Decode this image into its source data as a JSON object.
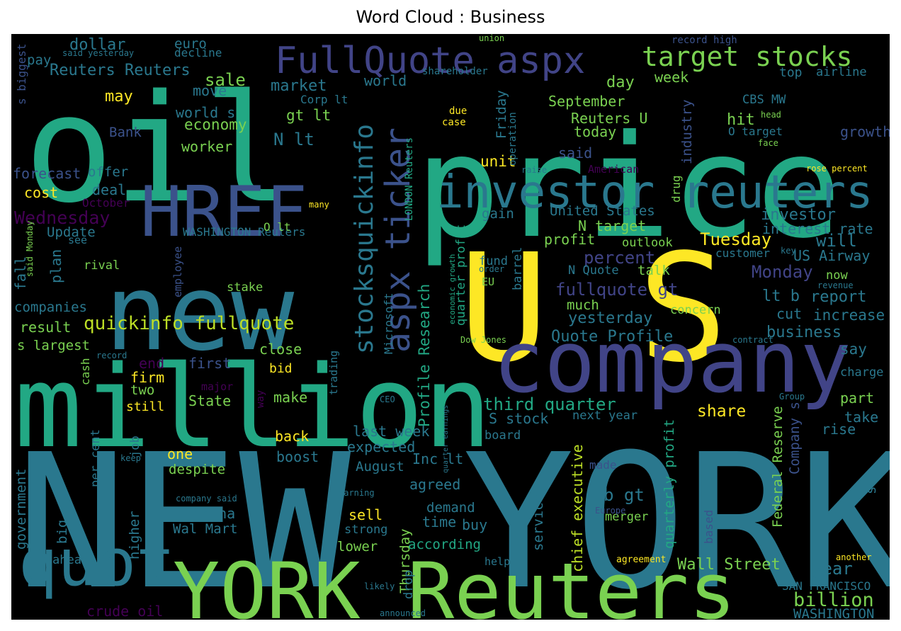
{
  "chart_data": {
    "type": "wordcloud",
    "title": "Word Cloud : Business",
    "colormap": "viridis",
    "background": "#000000",
    "words": [
      {
        "text": "NEW YORK",
        "weight": 1.0,
        "color": "#2a788e"
      },
      {
        "text": "price",
        "weight": 0.8,
        "color": "#22a884"
      },
      {
        "text": "oil",
        "weight": 0.78,
        "color": "#22a884"
      },
      {
        "text": "U S",
        "weight": 0.82,
        "color": "#fde725"
      },
      {
        "text": "million",
        "weight": 0.68,
        "color": "#22a884"
      },
      {
        "text": "new",
        "weight": 0.64,
        "color": "#2a788e"
      },
      {
        "text": "company",
        "weight": 0.56,
        "color": "#414487"
      },
      {
        "text": "YORK Reuters",
        "weight": 0.54,
        "color": "#7ad151"
      },
      {
        "text": "HREF",
        "weight": 0.42,
        "color": "#3b528b"
      },
      {
        "text": "quot",
        "weight": 0.4,
        "color": "#2a788e"
      },
      {
        "text": "investor reuters",
        "weight": 0.3,
        "color": "#2a788e"
      },
      {
        "text": "FullQuote aspx",
        "weight": 0.24,
        "color": "#414487"
      },
      {
        "text": "aspx ticker",
        "weight": 0.22,
        "color": "#3b528b"
      },
      {
        "text": "stocksquickinfo",
        "weight": 0.19,
        "color": "#2a788e"
      },
      {
        "text": "target stocks",
        "weight": 0.18,
        "color": "#7ad151"
      },
      {
        "text": "Wednesday",
        "weight": 0.1,
        "color": "#440154"
      },
      {
        "text": "quickinfo fullquote",
        "weight": 0.1,
        "color": "#bddf26"
      },
      {
        "text": "Reuters Reuters",
        "weight": 0.09,
        "color": "#2a788e"
      },
      {
        "text": "Tuesday",
        "weight": 0.1,
        "color": "#fde725"
      },
      {
        "text": "percent",
        "weight": 0.09,
        "color": "#414487"
      },
      {
        "text": "Monday",
        "weight": 0.09,
        "color": "#414487"
      },
      {
        "text": "fullquote gt",
        "weight": 0.09,
        "color": "#414487"
      },
      {
        "text": "third quarter",
        "weight": 0.09,
        "color": "#22a884"
      },
      {
        "text": "chief executive",
        "weight": 0.08,
        "color": "#bddf26"
      },
      {
        "text": "Profile Research",
        "weight": 0.08,
        "color": "#22a884"
      },
      {
        "text": "quarterly profit",
        "weight": 0.08,
        "color": "#22a884"
      },
      {
        "text": "Federal Reserve",
        "weight": 0.08,
        "color": "#7ad151"
      },
      {
        "text": "billion",
        "weight": 0.08,
        "color": "#7ad151"
      },
      {
        "text": "Wall Street",
        "weight": 0.08,
        "color": "#7ad151"
      },
      {
        "text": "investor",
        "weight": 0.07,
        "color": "#2a788e"
      },
      {
        "text": "interest rate",
        "weight": 0.07,
        "color": "#2a788e"
      },
      {
        "text": "US Airway",
        "weight": 0.07,
        "color": "#2a788e"
      },
      {
        "text": "yesterday",
        "weight": 0.07,
        "color": "#2a788e"
      },
      {
        "text": "Quote Profile",
        "weight": 0.07,
        "color": "#2a788e"
      },
      {
        "text": "business",
        "weight": 0.07,
        "color": "#2a788e"
      },
      {
        "text": "report",
        "weight": 0.07,
        "color": "#2a788e"
      },
      {
        "text": "increase",
        "weight": 0.07,
        "color": "#2a788e"
      },
      {
        "text": "say",
        "weight": 0.07,
        "color": "#2a788e"
      },
      {
        "text": "share",
        "weight": 0.07,
        "color": "#fde725"
      },
      {
        "text": "will",
        "weight": 0.07,
        "color": "#2a788e"
      },
      {
        "text": "year",
        "weight": 0.07,
        "color": "#2a788e"
      },
      {
        "text": "WASHINGTON",
        "weight": 0.06,
        "color": "#2a788e"
      },
      {
        "text": "SAN FRANCISCO",
        "weight": 0.05,
        "color": "#2a788e"
      },
      {
        "text": "market",
        "weight": 0.07,
        "color": "#2a788e"
      },
      {
        "text": "dollar",
        "weight": 0.07,
        "color": "#2a788e"
      },
      {
        "text": "sale",
        "weight": 0.07,
        "color": "#7ad151"
      },
      {
        "text": "may",
        "weight": 0.06,
        "color": "#fde725"
      },
      {
        "text": "move",
        "weight": 0.06,
        "color": "#2a788e"
      },
      {
        "text": "world s",
        "weight": 0.06,
        "color": "#2a788e"
      },
      {
        "text": "economy",
        "weight": 0.06,
        "color": "#7ad151"
      },
      {
        "text": "worker",
        "weight": 0.06,
        "color": "#7ad151"
      },
      {
        "text": "N lt",
        "weight": 0.07,
        "color": "#2a788e"
      },
      {
        "text": "gt lt",
        "weight": 0.06,
        "color": "#7ad151"
      },
      {
        "text": "Corp lt",
        "weight": 0.05,
        "color": "#2a788e"
      },
      {
        "text": "world",
        "weight": 0.06,
        "color": "#2a788e"
      },
      {
        "text": "Friday",
        "weight": 0.06,
        "color": "#2a788e"
      },
      {
        "text": "September",
        "weight": 0.06,
        "color": "#7ad151"
      },
      {
        "text": "Reuters U",
        "weight": 0.06,
        "color": "#7ad151"
      },
      {
        "text": "today",
        "weight": 0.06,
        "color": "#7ad151"
      },
      {
        "text": "day",
        "weight": 0.06,
        "color": "#7ad151"
      },
      {
        "text": "week",
        "weight": 0.06,
        "color": "#7ad151"
      },
      {
        "text": "CBS MW",
        "weight": 0.05,
        "color": "#2a788e"
      },
      {
        "text": "hit",
        "weight": 0.06,
        "color": "#7ad151"
      },
      {
        "text": "O target",
        "weight": 0.05,
        "color": "#2a788e"
      },
      {
        "text": "growth",
        "weight": 0.06,
        "color": "#3b528b"
      },
      {
        "text": "industry",
        "weight": 0.06,
        "color": "#3b528b"
      },
      {
        "text": "top",
        "weight": 0.06,
        "color": "#2a788e"
      },
      {
        "text": "UK",
        "weight": 0.06,
        "color": "#2a788e"
      },
      {
        "text": "airline",
        "weight": 0.05,
        "color": "#2a788e"
      },
      {
        "text": "said",
        "weight": 0.06,
        "color": "#3b528b"
      },
      {
        "text": "unit",
        "weight": 0.06,
        "color": "#fde725"
      },
      {
        "text": "Bank",
        "weight": 0.06,
        "color": "#3b528b"
      },
      {
        "text": "forecast",
        "weight": 0.06,
        "color": "#3b528b"
      },
      {
        "text": "offer",
        "weight": 0.06,
        "color": "#2a788e"
      },
      {
        "text": "deal",
        "weight": 0.06,
        "color": "#2a788e"
      },
      {
        "text": "cost",
        "weight": 0.06,
        "color": "#fde725"
      },
      {
        "text": "October",
        "weight": 0.05,
        "color": "#440154"
      },
      {
        "text": "Update",
        "weight": 0.06,
        "color": "#2a788e"
      },
      {
        "text": "plan",
        "weight": 0.06,
        "color": "#2a788e"
      },
      {
        "text": "fall",
        "weight": 0.06,
        "color": "#2a788e"
      },
      {
        "text": "rival",
        "weight": 0.05,
        "color": "#7ad151"
      },
      {
        "text": "companies",
        "weight": 0.06,
        "color": "#2a788e"
      },
      {
        "text": "result",
        "weight": 0.06,
        "color": "#7ad151"
      },
      {
        "text": "s largest",
        "weight": 0.06,
        "color": "#7ad151"
      },
      {
        "text": "stake",
        "weight": 0.05,
        "color": "#7ad151"
      },
      {
        "text": "employee",
        "weight": 0.05,
        "color": "#3b528b"
      },
      {
        "text": "WASHINGTON Reuters",
        "weight": 0.05,
        "color": "#2a788e"
      },
      {
        "text": "O lt",
        "weight": 0.05,
        "color": "#7ad151"
      },
      {
        "text": "close",
        "weight": 0.06,
        "color": "#7ad151"
      },
      {
        "text": "first",
        "weight": 0.06,
        "color": "#3b528b"
      },
      {
        "text": "bid",
        "weight": 0.05,
        "color": "#fde725"
      },
      {
        "text": "end",
        "weight": 0.06,
        "color": "#440154"
      },
      {
        "text": "firm",
        "weight": 0.06,
        "color": "#fde725"
      },
      {
        "text": "two",
        "weight": 0.05,
        "color": "#7ad151"
      },
      {
        "text": "still",
        "weight": 0.05,
        "color": "#fde725"
      },
      {
        "text": "State",
        "weight": 0.06,
        "color": "#7ad151"
      },
      {
        "text": "make",
        "weight": 0.06,
        "color": "#7ad151"
      },
      {
        "text": "back",
        "weight": 0.06,
        "color": "#fde725"
      },
      {
        "text": "one",
        "weight": 0.06,
        "color": "#fde725"
      },
      {
        "text": "despite",
        "weight": 0.06,
        "color": "#7ad151"
      },
      {
        "text": "boost",
        "weight": 0.06,
        "color": "#2a788e"
      },
      {
        "text": "China",
        "weight": 0.06,
        "color": "#2a788e"
      },
      {
        "text": "Wal Mart",
        "weight": 0.06,
        "color": "#2a788e"
      },
      {
        "text": "higher",
        "weight": 0.06,
        "color": "#2a788e"
      },
      {
        "text": "big",
        "weight": 0.06,
        "color": "#2a788e"
      },
      {
        "text": "government",
        "weight": 0.06,
        "color": "#2a788e"
      },
      {
        "text": "per cent",
        "weight": 0.05,
        "color": "#2a788e"
      },
      {
        "text": "job",
        "weight": 0.05,
        "color": "#2a788e"
      },
      {
        "text": "ahead",
        "weight": 0.05,
        "color": "#2a788e"
      },
      {
        "text": "crude oil",
        "weight": 0.06,
        "color": "#440154"
      },
      {
        "text": "last week",
        "weight": 0.06,
        "color": "#2a788e"
      },
      {
        "text": "expected",
        "weight": 0.06,
        "color": "#2a788e"
      },
      {
        "text": "August",
        "weight": 0.06,
        "color": "#2a788e"
      },
      {
        "text": "Inc lt",
        "weight": 0.06,
        "color": "#2a788e"
      },
      {
        "text": "agreed",
        "weight": 0.06,
        "color": "#2a788e"
      },
      {
        "text": "Thursday",
        "weight": 0.06,
        "color": "#7ad151"
      },
      {
        "text": "sell",
        "weight": 0.06,
        "color": "#fde725"
      },
      {
        "text": "demand",
        "weight": 0.06,
        "color": "#2a788e"
      },
      {
        "text": "time",
        "weight": 0.06,
        "color": "#2a788e"
      },
      {
        "text": "buy",
        "weight": 0.06,
        "color": "#2a788e"
      },
      {
        "text": "according",
        "weight": 0.06,
        "color": "#22a884"
      },
      {
        "text": "strong",
        "weight": 0.05,
        "color": "#2a788e"
      },
      {
        "text": "lower",
        "weight": 0.06,
        "color": "#7ad151"
      },
      {
        "text": "drop",
        "weight": 0.05,
        "color": "#2a788e"
      },
      {
        "text": "S stock",
        "weight": 0.06,
        "color": "#2a788e"
      },
      {
        "text": "next year",
        "weight": 0.05,
        "color": "#2a788e"
      },
      {
        "text": "board",
        "weight": 0.05,
        "color": "#2a788e"
      },
      {
        "text": "b gt",
        "weight": 0.06,
        "color": "#2a788e"
      },
      {
        "text": "merger",
        "weight": 0.05,
        "color": "#7ad151"
      },
      {
        "text": "made",
        "weight": 0.05,
        "color": "#3b528b"
      },
      {
        "text": "service",
        "weight": 0.06,
        "color": "#2a788e"
      },
      {
        "text": "Company s",
        "weight": 0.06,
        "color": "#3b528b"
      },
      {
        "text": "part",
        "weight": 0.06,
        "color": "#7ad151"
      },
      {
        "text": "take",
        "weight": 0.06,
        "color": "#2a788e"
      },
      {
        "text": "rise",
        "weight": 0.06,
        "color": "#2a788e"
      },
      {
        "text": "set",
        "weight": 0.06,
        "color": "#2a788e"
      },
      {
        "text": "charge",
        "weight": 0.05,
        "color": "#2a788e"
      },
      {
        "text": "based",
        "weight": 0.05,
        "color": "#3b528b"
      },
      {
        "text": "cut",
        "weight": 0.06,
        "color": "#2a788e"
      },
      {
        "text": "lt b",
        "weight": 0.06,
        "color": "#2a788e"
      },
      {
        "text": "concern",
        "weight": 0.05,
        "color": "#7ad151"
      },
      {
        "text": "much",
        "weight": 0.06,
        "color": "#7ad151"
      },
      {
        "text": "talk",
        "weight": 0.06,
        "color": "#7ad151"
      },
      {
        "text": "N Quote",
        "weight": 0.05,
        "color": "#2a788e"
      },
      {
        "text": "outlook",
        "weight": 0.05,
        "color": "#7ad151"
      },
      {
        "text": "profit",
        "weight": 0.06,
        "color": "#7ad151"
      },
      {
        "text": "N target",
        "weight": 0.06,
        "color": "#7ad151"
      },
      {
        "text": "United States",
        "weight": 0.06,
        "color": "#2a788e"
      },
      {
        "text": "gain",
        "weight": 0.06,
        "color": "#2a788e"
      },
      {
        "text": "fund",
        "weight": 0.05,
        "color": "#2a788e"
      },
      {
        "text": "barrel",
        "weight": 0.05,
        "color": "#2a788e"
      },
      {
        "text": "customer",
        "weight": 0.05,
        "color": "#2a788e"
      },
      {
        "text": "now",
        "weight": 0.05,
        "color": "#7ad151"
      },
      {
        "text": "quarter profit",
        "weight": 0.05,
        "color": "#22a884"
      },
      {
        "text": "Microsoft",
        "weight": 0.05,
        "color": "#2a788e"
      },
      {
        "text": "trading",
        "weight": 0.05,
        "color": "#2a788e"
      },
      {
        "text": "cash",
        "weight": 0.05,
        "color": "#7ad151"
      },
      {
        "text": "major",
        "weight": 0.05,
        "color": "#440154"
      },
      {
        "text": "drug",
        "weight": 0.05,
        "color": "#7ad151"
      },
      {
        "text": "pay",
        "weight": 0.05,
        "color": "#2a788e"
      },
      {
        "text": "euro",
        "weight": 0.05,
        "color": "#2a788e"
      },
      {
        "text": "decline",
        "weight": 0.05,
        "color": "#2a788e"
      },
      {
        "text": "s biggest",
        "weight": 0.04,
        "color": "#3b528b"
      },
      {
        "text": "said yesterday",
        "weight": 0.04,
        "color": "#2a788e"
      },
      {
        "text": "union",
        "weight": 0.03,
        "color": "#7ad151"
      },
      {
        "text": "shareholder",
        "weight": 0.04,
        "color": "#2a788e"
      },
      {
        "text": "record high",
        "weight": 0.04,
        "color": "#3b528b"
      },
      {
        "text": "LONDON Reuters",
        "weight": 0.04,
        "color": "#22a884"
      },
      {
        "text": "due",
        "weight": 0.04,
        "color": "#fde725"
      },
      {
        "text": "case",
        "weight": 0.04,
        "color": "#fde725"
      },
      {
        "text": "operation",
        "weight": 0.04,
        "color": "#2a788e"
      },
      {
        "text": "head",
        "weight": 0.03,
        "color": "#7ad151"
      },
      {
        "text": "face",
        "weight": 0.03,
        "color": "#7ad151"
      },
      {
        "text": "raise",
        "weight": 0.03,
        "color": "#2a788e"
      },
      {
        "text": "American",
        "weight": 0.04,
        "color": "#440154"
      },
      {
        "text": "rose percent",
        "weight": 0.04,
        "color": "#fde725"
      },
      {
        "text": "many",
        "weight": 0.03,
        "color": "#fde725"
      },
      {
        "text": "said Monday",
        "weight": 0.04,
        "color": "#7ad151"
      },
      {
        "text": "see",
        "weight": 0.04,
        "color": "#2a788e"
      },
      {
        "text": "order",
        "weight": 0.03,
        "color": "#2a788e"
      },
      {
        "text": "EU",
        "weight": 0.04,
        "color": "#7ad151"
      },
      {
        "text": "key",
        "weight": 0.03,
        "color": "#2a788e"
      },
      {
        "text": "revenue",
        "weight": 0.03,
        "color": "#2a788e"
      },
      {
        "text": "economic growth",
        "weight": 0.03,
        "color": "#22a884"
      },
      {
        "text": "Dow Jones",
        "weight": 0.03,
        "color": "#7ad151"
      },
      {
        "text": "contract",
        "weight": 0.03,
        "color": "#2a788e"
      },
      {
        "text": "record",
        "weight": 0.03,
        "color": "#2a788e"
      },
      {
        "text": "way",
        "weight": 0.04,
        "color": "#440154"
      },
      {
        "text": "CEO",
        "weight": 0.03,
        "color": "#2a788e"
      },
      {
        "text": "quarter earnings",
        "weight": 0.03,
        "color": "#2a788e"
      },
      {
        "text": "Group",
        "weight": 0.03,
        "color": "#2a788e"
      },
      {
        "text": "keep",
        "weight": 0.03,
        "color": "#2a788e"
      },
      {
        "text": "company said",
        "weight": 0.03,
        "color": "#2a788e"
      },
      {
        "text": "earning",
        "weight": 0.03,
        "color": "#2a788e"
      },
      {
        "text": "likely",
        "weight": 0.03,
        "color": "#2a788e"
      },
      {
        "text": "help",
        "weight": 0.04,
        "color": "#2a788e"
      },
      {
        "text": "announced",
        "weight": 0.03,
        "color": "#2a788e"
      },
      {
        "text": "agreement",
        "weight": 0.03,
        "color": "#fde725"
      },
      {
        "text": "Europe",
        "weight": 0.03,
        "color": "#3b528b"
      },
      {
        "text": "another",
        "weight": 0.03,
        "color": "#fde725"
      }
    ]
  }
}
